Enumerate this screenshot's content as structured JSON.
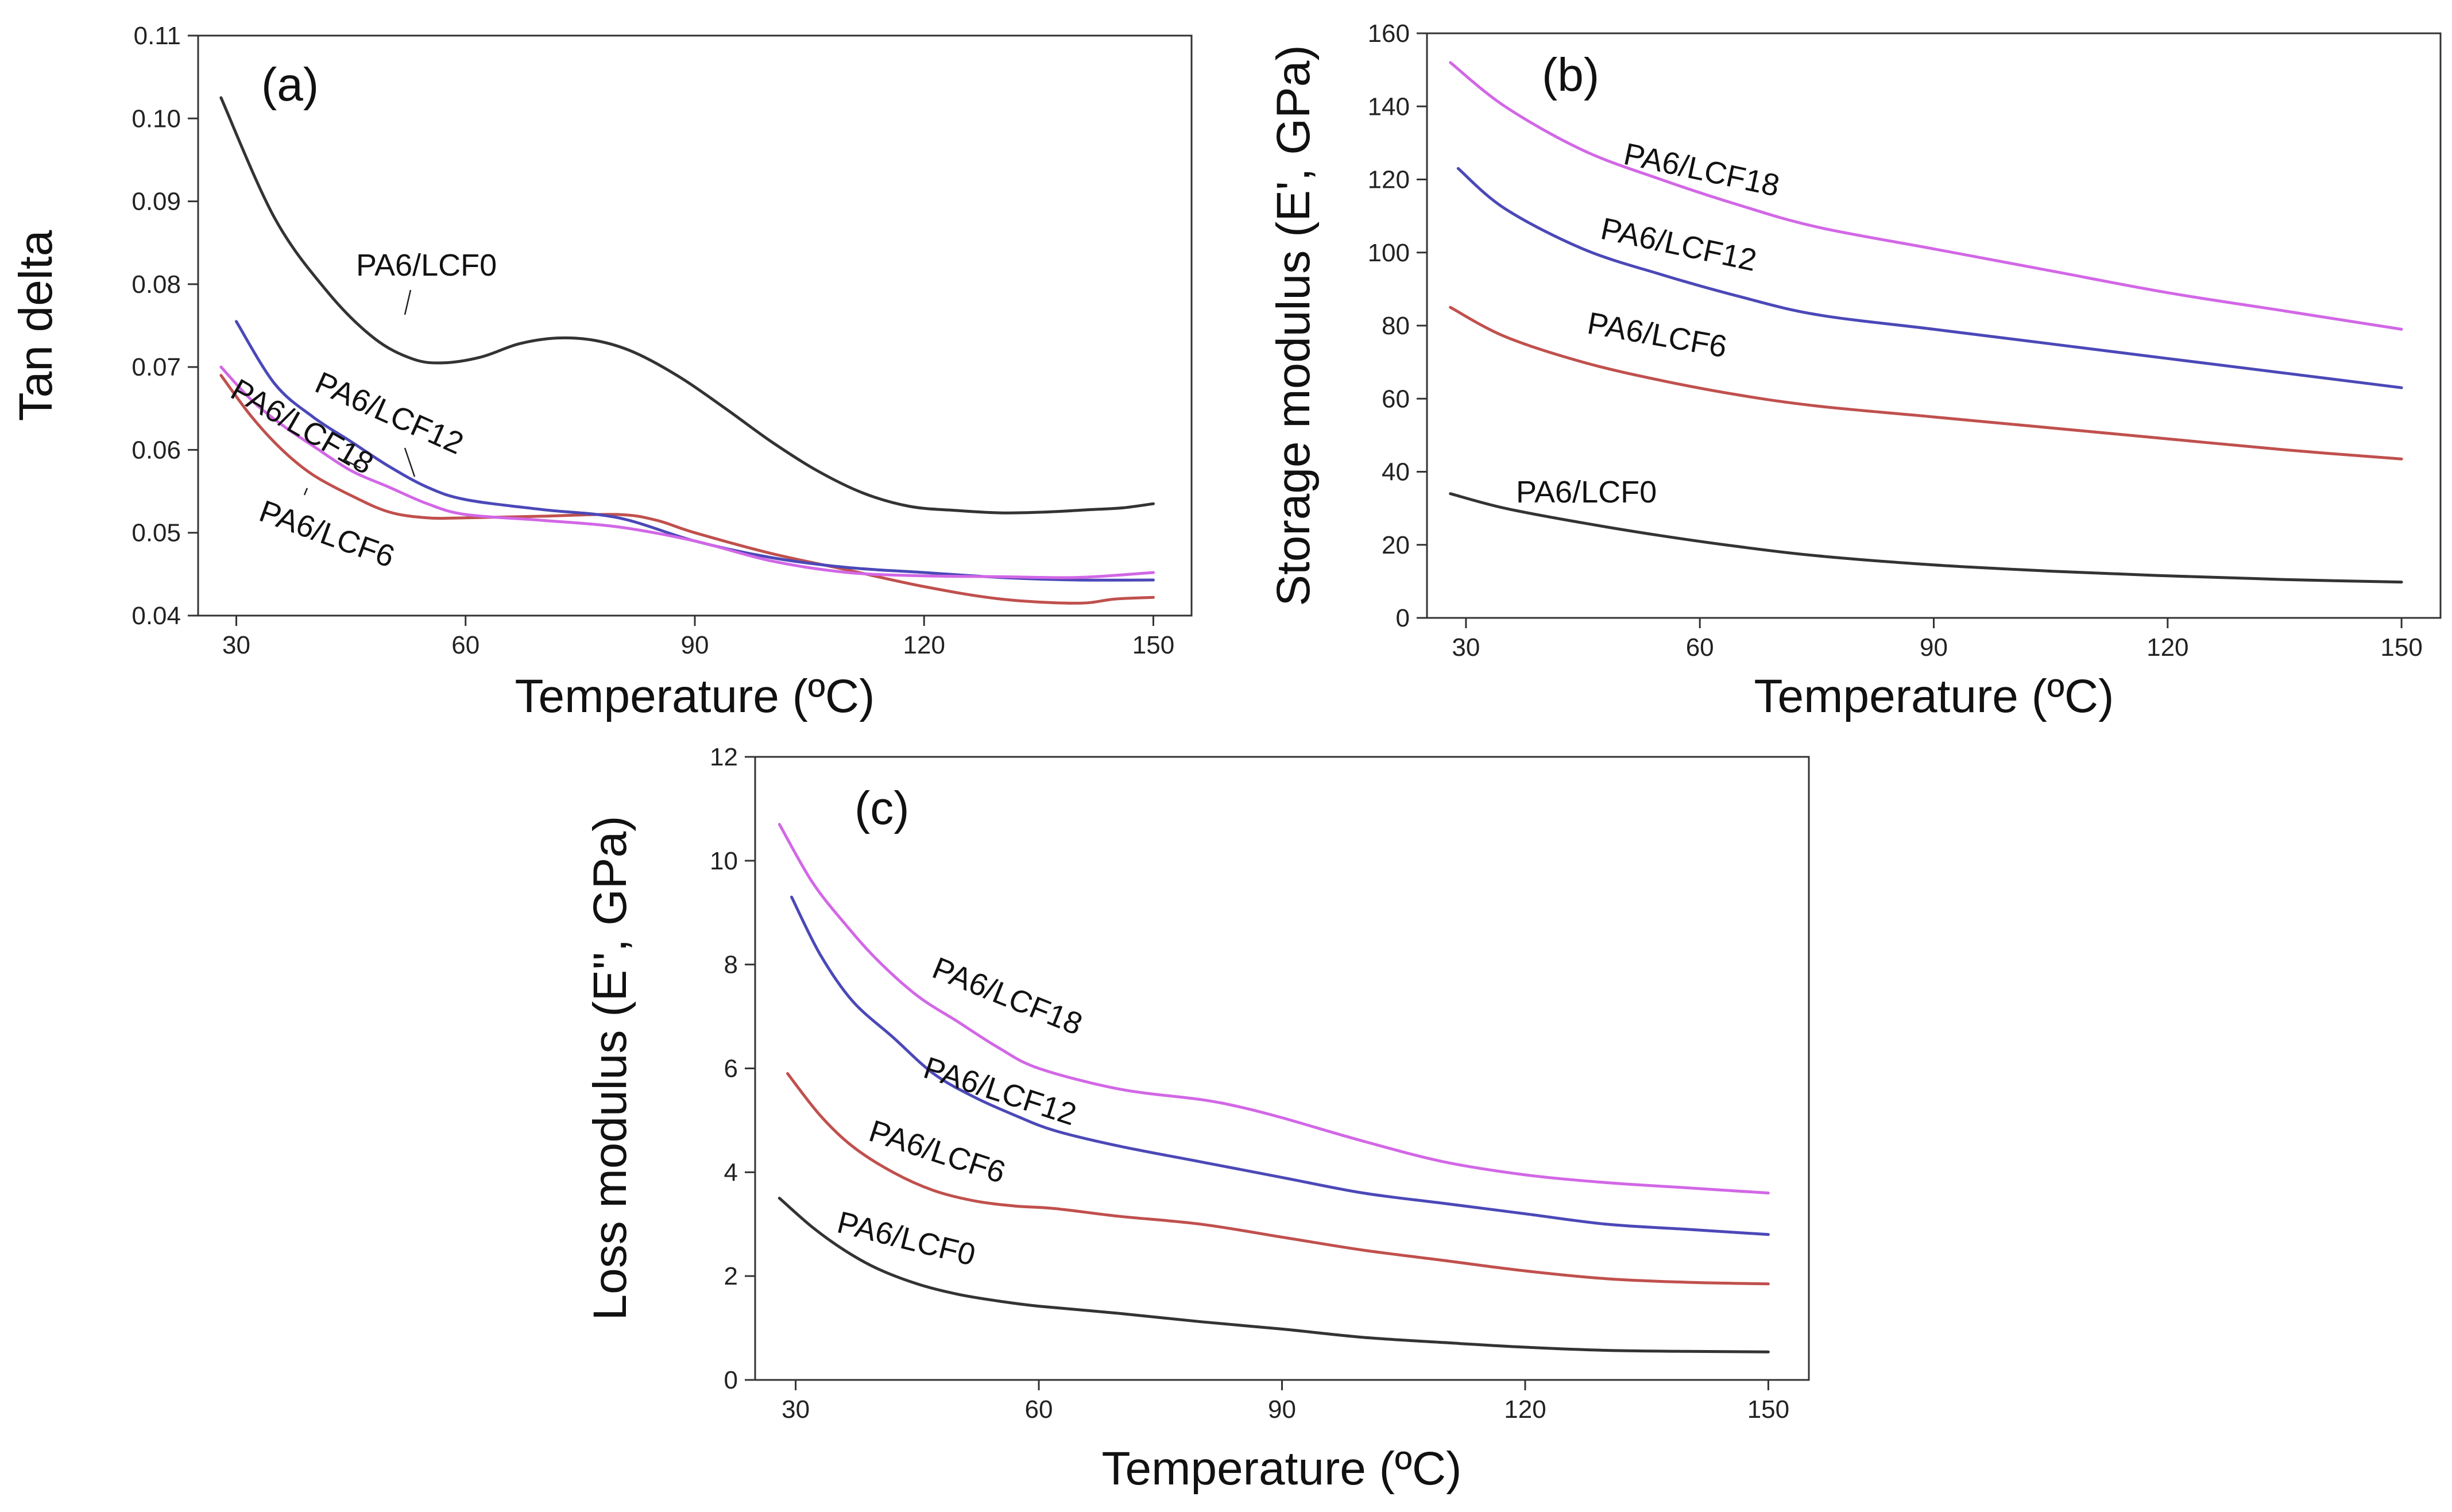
{
  "colors": {
    "PA6/LCF0": "#333333",
    "PA6/LCF6": "#c0504d",
    "PA6/LCF12": "#4b48b8",
    "PA6/LCF18": "#d267e6"
  },
  "chart_data": [
    {
      "type": "line",
      "panel_label": "(a)",
      "title": "",
      "xlabel": "Temperature (ºC)",
      "ylabel": "Tan delta",
      "xlim": [
        25,
        155
      ],
      "ylim": [
        0.04,
        0.11
      ],
      "x_ticks": [
        30,
        60,
        90,
        120,
        150
      ],
      "y_ticks": [
        0.04,
        0.05,
        0.06,
        0.07,
        0.08,
        0.09,
        0.1,
        0.11
      ],
      "y_tick_labels": [
        "0.04",
        "0.05",
        "0.06",
        "0.07",
        "0.08",
        "0.09",
        "0.10",
        "0.11"
      ],
      "grid": false,
      "series": [
        {
          "name": "PA6/LCF0",
          "x": [
            28,
            35,
            42,
            48,
            53,
            57,
            62,
            67,
            72,
            77,
            82,
            88,
            94,
            100,
            106,
            112,
            118,
            124,
            130,
            136,
            142,
            146,
            150
          ],
          "values": [
            0.1025,
            0.088,
            0.079,
            0.0735,
            0.071,
            0.0705,
            0.0712,
            0.0728,
            0.0735,
            0.0732,
            0.0718,
            0.0688,
            0.065,
            0.061,
            0.0575,
            0.0548,
            0.0532,
            0.0527,
            0.0524,
            0.0525,
            0.0528,
            0.053,
            0.0535
          ]
        },
        {
          "name": "PA6/LCF6",
          "x": [
            28,
            32,
            36,
            40,
            45,
            50,
            55,
            60,
            70,
            80,
            85,
            90,
            100,
            110,
            120,
            130,
            140,
            145,
            150
          ],
          "values": [
            0.069,
            0.064,
            0.06,
            0.057,
            0.0545,
            0.0525,
            0.0518,
            0.0518,
            0.052,
            0.0522,
            0.0515,
            0.05,
            0.0475,
            0.0455,
            0.0435,
            0.042,
            0.0415,
            0.042,
            0.0422
          ]
        },
        {
          "name": "PA6/LCF12",
          "x": [
            30,
            35,
            40,
            45,
            50,
            55,
            60,
            70,
            80,
            90,
            100,
            110,
            120,
            130,
            140,
            150
          ],
          "values": [
            0.0755,
            0.068,
            0.064,
            0.061,
            0.058,
            0.0555,
            0.054,
            0.0528,
            0.0518,
            0.049,
            0.047,
            0.0458,
            0.0452,
            0.0446,
            0.0443,
            0.0443
          ]
        },
        {
          "name": "PA6/LCF18",
          "x": [
            28,
            32,
            36,
            40,
            45,
            50,
            55,
            60,
            70,
            80,
            90,
            100,
            110,
            120,
            130,
            140,
            150
          ],
          "values": [
            0.07,
            0.066,
            0.063,
            0.0605,
            0.0575,
            0.0555,
            0.0535,
            0.0522,
            0.0515,
            0.0507,
            0.049,
            0.0466,
            0.0452,
            0.0448,
            0.0447,
            0.0446,
            0.0452
          ]
        }
      ],
      "annotations": [
        "PA6/LCF0",
        "PA6/LCF12",
        "PA6/LCF18",
        "PA6/LCF6"
      ]
    },
    {
      "type": "line",
      "panel_label": "(b)",
      "title": "",
      "xlabel": "Temperature (ºC)",
      "ylabel": "Storage modulus (E', GPa)",
      "xlim": [
        25,
        155
      ],
      "ylim": [
        0,
        160
      ],
      "x_ticks": [
        30,
        60,
        90,
        120,
        150
      ],
      "y_ticks": [
        0,
        20,
        40,
        60,
        80,
        100,
        120,
        140,
        160
      ],
      "y_tick_labels": [
        "0",
        "20",
        "40",
        "60",
        "80",
        "100",
        "120",
        "140",
        "160"
      ],
      "grid": false,
      "series": [
        {
          "name": "PA6/LCF18",
          "x": [
            28,
            35,
            45,
            55,
            65,
            75,
            90,
            105,
            120,
            135,
            150
          ],
          "values": [
            152,
            140,
            128,
            120,
            113,
            107,
            101,
            95,
            89,
            84,
            79
          ]
        },
        {
          "name": "PA6/LCF12",
          "x": [
            29,
            35,
            45,
            55,
            65,
            75,
            90,
            105,
            120,
            135,
            150
          ],
          "values": [
            123,
            112,
            101,
            94,
            88,
            83,
            79,
            75,
            71,
            67,
            63
          ]
        },
        {
          "name": "PA6/LCF6",
          "x": [
            28,
            35,
            45,
            55,
            65,
            75,
            90,
            105,
            120,
            135,
            150
          ],
          "values": [
            85,
            77,
            70,
            65,
            61,
            58,
            55,
            52,
            49,
            46,
            43.5
          ]
        },
        {
          "name": "PA6/LCF0",
          "x": [
            28,
            35,
            45,
            55,
            65,
            75,
            90,
            105,
            120,
            135,
            150
          ],
          "values": [
            34,
            30,
            26,
            22.5,
            19.5,
            17,
            14.5,
            12.8,
            11.5,
            10.5,
            9.8
          ]
        }
      ],
      "annotations": [
        "PA6/LCF18",
        "PA6/LCF12",
        "PA6/LCF6",
        "PA6/LCF0"
      ]
    },
    {
      "type": "line",
      "panel_label": "(c)",
      "title": "",
      "xlabel": "Temperature (ºC)",
      "ylabel": "Loss modulus (E'', GPa)",
      "xlim": [
        25,
        155
      ],
      "ylim": [
        0,
        12
      ],
      "x_ticks": [
        30,
        60,
        90,
        120,
        150
      ],
      "y_ticks": [
        0,
        2,
        4,
        6,
        8,
        10,
        12
      ],
      "y_tick_labels": [
        "0",
        "2",
        "4",
        "6",
        "8",
        "10",
        "12"
      ],
      "grid": false,
      "series": [
        {
          "name": "PA6/LCF18",
          "x": [
            28,
            32,
            36,
            40,
            45,
            50,
            55,
            60,
            70,
            80,
            85,
            90,
            100,
            110,
            120,
            130,
            140,
            150
          ],
          "values": [
            10.7,
            9.6,
            8.8,
            8.1,
            7.4,
            6.9,
            6.4,
            6.0,
            5.6,
            5.4,
            5.25,
            5.05,
            4.6,
            4.2,
            3.95,
            3.8,
            3.7,
            3.6
          ]
        },
        {
          "name": "PA6/LCF12",
          "x": [
            29.5,
            33,
            37,
            42,
            47,
            52,
            57,
            62,
            70,
            80,
            90,
            100,
            110,
            120,
            130,
            140,
            150
          ],
          "values": [
            9.3,
            8.2,
            7.3,
            6.6,
            5.9,
            5.45,
            5.1,
            4.8,
            4.5,
            4.2,
            3.9,
            3.6,
            3.4,
            3.2,
            3.0,
            2.9,
            2.8
          ]
        },
        {
          "name": "PA6/LCF6",
          "x": [
            29,
            33,
            37,
            42,
            47,
            52,
            57,
            62,
            70,
            80,
            90,
            100,
            110,
            120,
            130,
            140,
            150
          ],
          "values": [
            5.9,
            5.1,
            4.5,
            4.0,
            3.65,
            3.45,
            3.35,
            3.3,
            3.15,
            3.0,
            2.75,
            2.5,
            2.3,
            2.1,
            1.95,
            1.88,
            1.85
          ]
        },
        {
          "name": "PA6/LCF0",
          "x": [
            28,
            32,
            36,
            40,
            45,
            50,
            55,
            60,
            70,
            80,
            90,
            100,
            110,
            120,
            130,
            140,
            150
          ],
          "values": [
            3.5,
            2.95,
            2.5,
            2.15,
            1.85,
            1.65,
            1.52,
            1.42,
            1.28,
            1.12,
            0.98,
            0.82,
            0.72,
            0.63,
            0.57,
            0.55,
            0.54
          ]
        }
      ],
      "annotations": [
        "PA6/LCF18",
        "PA6/LCF12",
        "PA6/LCF6",
        "PA6/LCF0"
      ]
    }
  ]
}
